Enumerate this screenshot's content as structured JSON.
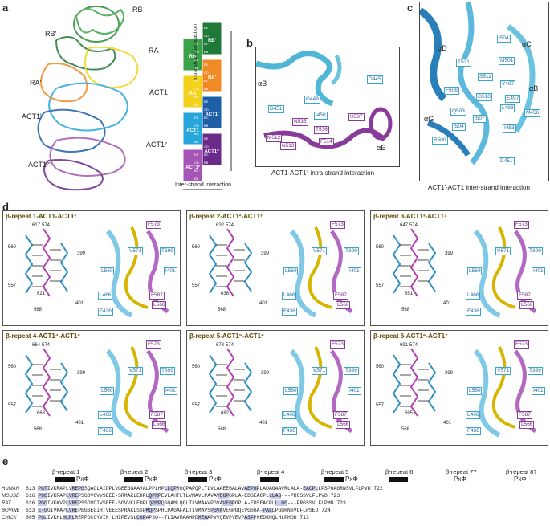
{
  "panel_a": {
    "label": "a",
    "structure_labels": [
      "RB",
      "RB'",
      "RA",
      "RA'",
      "ACT1",
      "ACT1'",
      "ACT1²",
      "ACT1²'"
    ],
    "schematic": {
      "blocks": [
        {
          "name": "RB",
          "color": "#3aa34a"
        },
        {
          "name": "RB'",
          "color": "#1f7a3a"
        },
        {
          "name": "RA",
          "color": "#f2d21b"
        },
        {
          "name": "RA'",
          "color": "#f08a24"
        },
        {
          "name": "ACT1",
          "color": "#27a6dc"
        },
        {
          "name": "ACT1'",
          "color": "#1e5fa8"
        },
        {
          "name": "ACT1²",
          "color": "#a455b5"
        },
        {
          "name": "ACT1²'",
          "color": "#6b2a8a"
        }
      ],
      "side_labels": [
        "EE",
        "CD",
        "BC",
        "BB"
      ],
      "vertical_axis": "Intra-strand interaction",
      "horizontal_axis": "Inter-strand interaction"
    }
  },
  "panel_b": {
    "label": "b",
    "caption": "ACT1-ACT1² intra-strand interaction",
    "helices": [
      "αB",
      "αE"
    ],
    "residues_cyan": [
      "D445",
      "G449",
      "D451",
      "I450"
    ],
    "residues_magenta": [
      "H537",
      "N535",
      "T536",
      "M512",
      "N513",
      "F514"
    ]
  },
  "panel_c": {
    "label": "c",
    "caption": "ACT1'-ACT1 inter-strand interaction",
    "helices": [
      "αD",
      "αC",
      "αB",
      "αG"
    ],
    "residues": [
      "I504",
      "M501",
      "T531",
      "S511",
      "Y497",
      "F506",
      "G510",
      "E457",
      "Q503",
      "I507",
      "L493",
      "M456",
      "I504",
      "I453",
      "R500",
      "D451"
    ]
  },
  "panel_d": {
    "label": "d",
    "repeats": [
      {
        "title": "β-repeat 1-ACT1-ACT1²",
        "left_nums": [
          "617",
          "574",
          "560",
          "557",
          "621",
          "399",
          "401",
          "568"
        ]
      },
      {
        "title": "β-repeat 2-ACT1²-ACT1³",
        "left_nums": [
          "632",
          "574",
          "560",
          "557",
          "636",
          "399",
          "401",
          "568"
        ]
      },
      {
        "title": "β-repeat 3-ACT1³-ACT1⁴",
        "left_nums": [
          "647",
          "574",
          "560",
          "557",
          "651",
          "399",
          "401",
          "568"
        ]
      },
      {
        "title": "β-repeat 4-ACT1⁴-ACT1⁵",
        "left_nums": [
          "664",
          "574",
          "560",
          "557",
          "668",
          "399",
          "401",
          "568"
        ]
      },
      {
        "title": "β-repeat 5-ACT1⁵-ACT1⁶",
        "left_nums": [
          "678",
          "574",
          "560",
          "557",
          "682",
          "399",
          "401",
          "568"
        ]
      },
      {
        "title": "β-repeat 6-ACT1⁶-ACT1⁷",
        "left_nums": [
          "691",
          "574",
          "560",
          "557",
          "695",
          "399",
          "401",
          "568"
        ]
      }
    ],
    "tags": [
      "F573",
      "V571",
      "T399",
      "L560",
      "F587",
      "L566",
      "F436",
      "L466",
      "I401"
    ]
  },
  "panel_e": {
    "label": "e",
    "repeat_labels": [
      "β-repeat 1",
      "β-repeat 2",
      "β-repeat 3",
      "β-repeat 4",
      "β-repeat 5",
      "β-repeat 6",
      "β-repeat 7?",
      "β-repeat 8?"
    ],
    "motif": "PxΦ",
    "rows": [
      {
        "species": "HUMAN",
        "start": "613",
        "seq": "PGTIVKRAPLVREPGSQACLAIDPLVGEEGGAAVALPPLHPLLQPRGQPAPQPLTLVLAAEEGALAVAEPGPLADAGAAVRLALA-EACPLLPSPGAGRNSVLFLPVD",
        "end": "722"
      },
      {
        "species": "MOUSE",
        "start": "616",
        "seq": "PGGIVKRAPLVREPSGDVCVVSEEE-SRMAKLEDPLQPRPEVLAHTLTLVMAVLPAVAVEGPGPLA-EDSEACPLLLAG---PRGSSVLFLPVD",
        "end": "723"
      },
      {
        "species": "RAT",
        "start": "616",
        "seq": "PGGIVKKVPLVREPSSDVCIVSEEE-SGVVKLEDPLQPRPQSQAMLQGLTLVMAAVPGVAVEGPGPLA-EDSEACPLLLGG---PRGSSVLFLPMD",
        "end": "723"
      },
      {
        "species": "BOVINE",
        "start": "613",
        "seq": "E-GGIVKAPLVREPEGSEGIRTVEEESPRAKLSSPMQPSPHLPAGAFALTLVMAVSPGVAVEGPGQEVGSGA-PALLPGGRNSVLFLPSED",
        "end": "724"
      },
      {
        "species": "CHICK",
        "start": "605",
        "seq": "PGLIVKHLHLPLREPPDCCYVIN LHIPEVSLCGPAPSQ--TLIAVMAAHPDMEAAPVVQEVPVEVPASFPMEDRNQLHLPHDD",
        "end": "713"
      }
    ]
  }
}
